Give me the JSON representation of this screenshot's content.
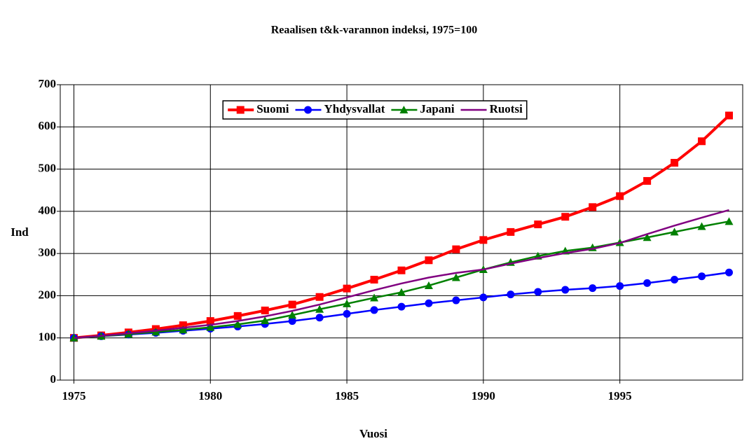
{
  "chart_data": {
    "type": "line",
    "title": "Reaalisen t&k-varannon indeksi, 1975=100",
    "x_label": "Vuosi",
    "y_label": "Ind",
    "x": [
      1975,
      1976,
      1977,
      1978,
      1979,
      1980,
      1981,
      1982,
      1983,
      1984,
      1985,
      1986,
      1987,
      1988,
      1989,
      1990,
      1991,
      1992,
      1993,
      1994,
      1995,
      1996,
      1997,
      1998,
      1999
    ],
    "series": [
      {
        "name": "Suomi",
        "color": "#ff0000",
        "marker": "square",
        "values": [
          100,
          106,
          113,
          121,
          130,
          140,
          152,
          165,
          179,
          197,
          217,
          238,
          260,
          284,
          310,
          332,
          351,
          369,
          387,
          410,
          436,
          472,
          515,
          566,
          627
        ]
      },
      {
        "name": "Yhdysvallat",
        "color": "#0000ff",
        "marker": "circle",
        "values": [
          100,
          104,
          108,
          112,
          117,
          122,
          127,
          133,
          140,
          148,
          157,
          166,
          174,
          182,
          189,
          196,
          203,
          209,
          214,
          218,
          223,
          230,
          238,
          246,
          255
        ]
      },
      {
        "name": "Japani",
        "color": "#008000",
        "marker": "triangle",
        "values": [
          100,
          104,
          109,
          114,
          119,
          125,
          132,
          141,
          154,
          168,
          181,
          195,
          208,
          224,
          243,
          262,
          279,
          294,
          306,
          314,
          326,
          338,
          351,
          364,
          376
        ]
      },
      {
        "name": "Ruotsi",
        "color": "#800080",
        "marker": "none",
        "values": [
          100,
          105,
          111,
          117,
          124,
          131,
          140,
          151,
          164,
          179,
          196,
          213,
          229,
          243,
          254,
          262,
          276,
          289,
          301,
          311,
          325,
          346,
          366,
          385,
          403
        ]
      }
    ],
    "xlim": [
      1974.5,
      1999.5
    ],
    "xticks": [
      1975,
      1980,
      1985,
      1990,
      1995
    ],
    "ylim": [
      0,
      700
    ],
    "yticks": [
      0,
      100,
      200,
      300,
      400,
      500,
      600,
      700
    ],
    "grid": true,
    "legend": "top"
  }
}
